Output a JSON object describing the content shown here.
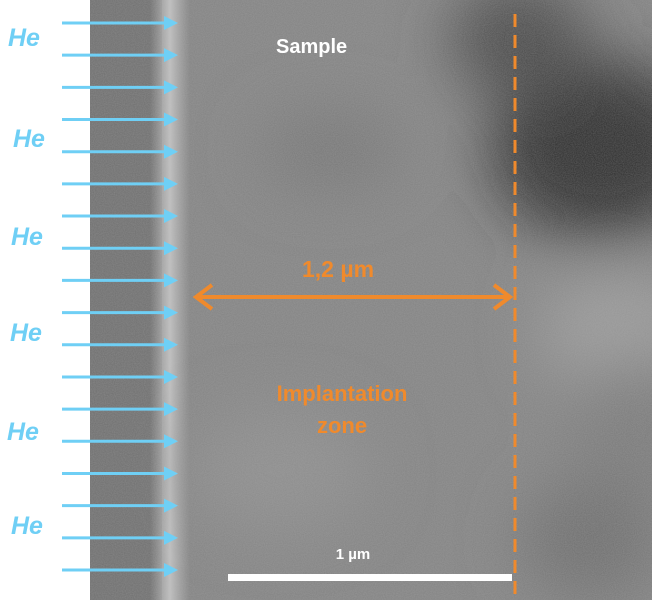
{
  "labels": {
    "ion": "He",
    "sample": "Sample",
    "depth_measure": "1,2 µm",
    "zone_line1": "Implantation",
    "zone_line2": "zone",
    "scale_bar": "1 µm"
  },
  "colors": {
    "arrow": "#6fcff5",
    "ion_text": "#6fcff5",
    "annotation": "#f08a2c",
    "scale_bar": "#ffffff",
    "micrograph_base": "#828282"
  },
  "icons": {
    "ion_arrow": "arrow-right-icon",
    "measure_arrow": "double-arrow-icon"
  },
  "ion_arrow_count": 18
}
